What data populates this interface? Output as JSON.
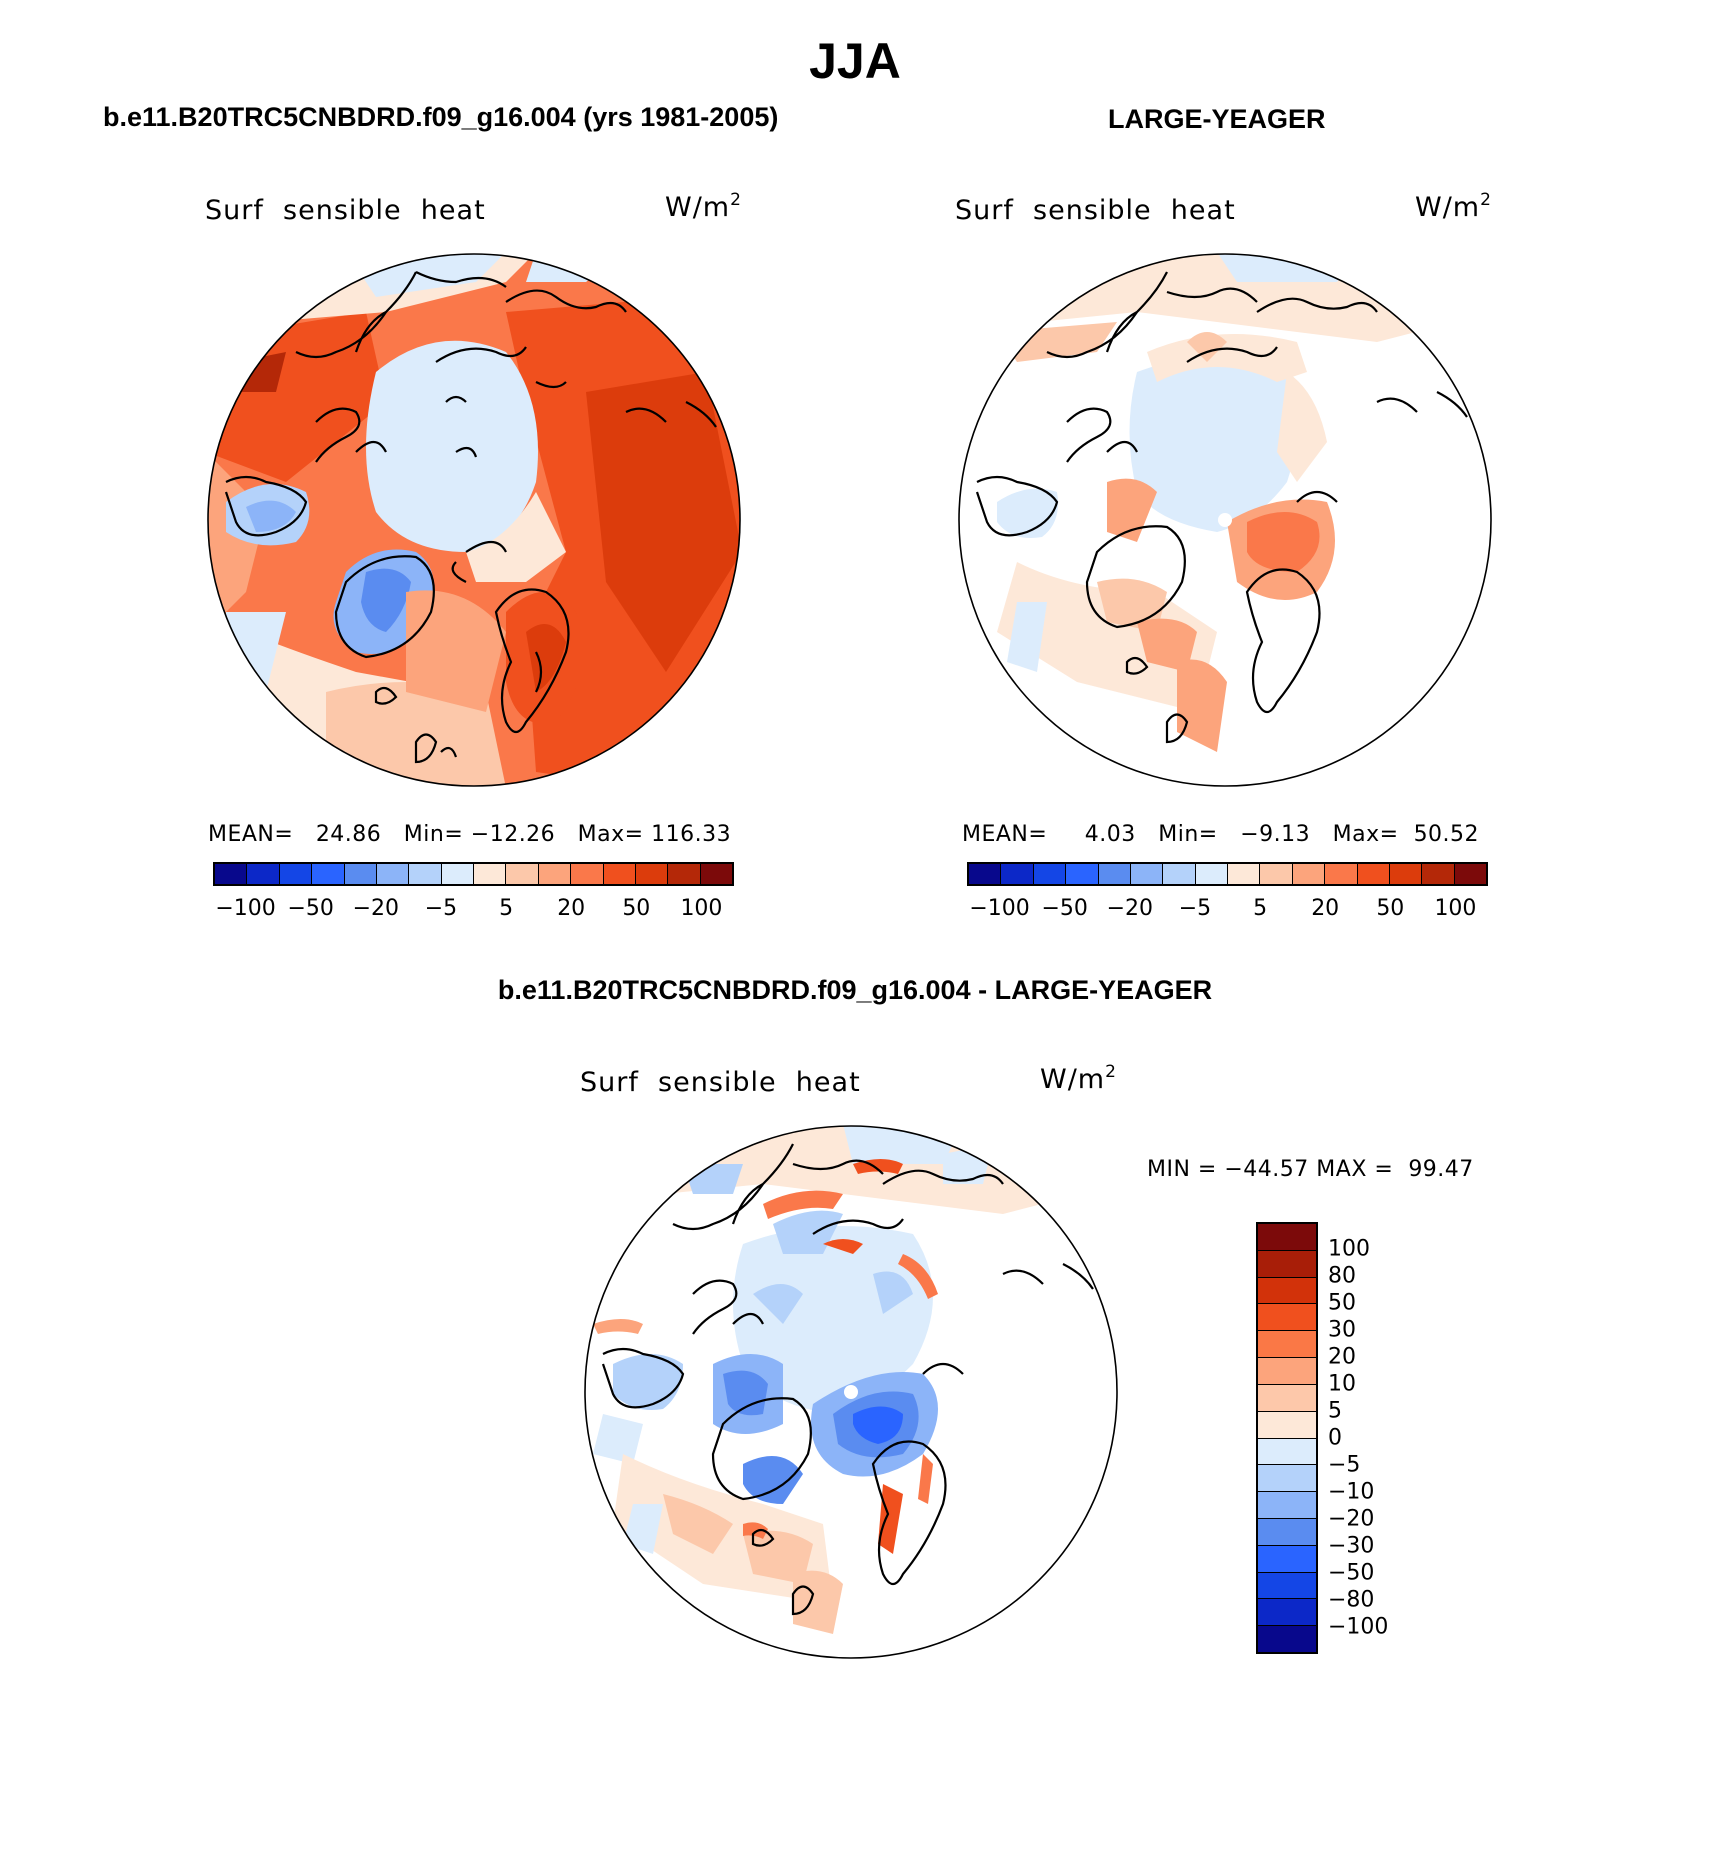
{
  "figure": {
    "season": "JJA",
    "left_case_title": "b.e11.B20TRC5CNBDRD.f09_g16.004 (yrs 1981-2005)",
    "right_case_title": "LARGE-YEAGER",
    "diff_title": "b.e11.B20TRC5CNBDRD.f09_g16.004 - LARGE-YEAGER"
  },
  "panels": {
    "model": {
      "field": "Surf  sensible  heat",
      "units": "W/m",
      "units_exp": "2",
      "mean_label": "MEAN=",
      "mean_value": "24.86",
      "min_label": "Min=",
      "min_value": "−12.26",
      "max_label": "Max=",
      "max_value": "116.33"
    },
    "obs": {
      "field": "Surf  sensible  heat",
      "units": "W/m",
      "units_exp": "2",
      "mean_label": "MEAN=",
      "mean_value": "4.03",
      "min_label": "Min=",
      "min_value": "−9.13",
      "max_label": "Max=",
      "max_value": "50.52"
    },
    "diff": {
      "field": "Surf  sensible  heat",
      "units": "W/m",
      "units_exp": "2",
      "min_label": "MIN =",
      "min_value": "−44.57",
      "max_label": "MAX =",
      "max_value": "99.47"
    }
  },
  "chart_data": [
    {
      "type": "heatmap",
      "projection": "north polar stereographic",
      "title": "Surf sensible heat",
      "subtitle": "b.e11.B20TRC5CNBDRD.f09_g16.004 (yrs 1981-2005)",
      "units": "W/m2",
      "mean": 24.86,
      "min": -12.26,
      "max": 116.33,
      "colorbar_levels": [
        -100,
        -50,
        -20,
        -5,
        5,
        20,
        50,
        100
      ],
      "colorbar_tick_labels": [
        "−100",
        "−50",
        "−20",
        "−5",
        "5",
        "20",
        "50",
        "100"
      ]
    },
    {
      "type": "heatmap",
      "projection": "north polar stereographic",
      "title": "Surf sensible heat",
      "subtitle": "LARGE-YEAGER",
      "units": "W/m2",
      "mean": 4.03,
      "min": -9.13,
      "max": 50.52,
      "colorbar_levels": [
        -100,
        -50,
        -20,
        -5,
        5,
        20,
        50,
        100
      ],
      "colorbar_tick_labels": [
        "−100",
        "−50",
        "−20",
        "−5",
        "5",
        "20",
        "50",
        "100"
      ]
    },
    {
      "type": "heatmap",
      "projection": "north polar stereographic",
      "title": "Surf sensible heat",
      "subtitle": "b.e11.B20TRC5CNBDRD.f09_g16.004 - LARGE-YEAGER",
      "units": "W/m2",
      "min": -44.57,
      "max": 99.47,
      "colorbar_levels": [
        100,
        80,
        50,
        30,
        20,
        10,
        5,
        0,
        -5,
        -10,
        -20,
        -30,
        -50,
        -80,
        -100
      ],
      "colorbar_tick_labels": [
        "100",
        "80",
        "50",
        "30",
        "20",
        "10",
        "5",
        "0",
        "−5",
        "−10",
        "−20",
        "−30",
        "−50",
        "−80",
        "−100"
      ]
    }
  ],
  "colors": {
    "abs_scale": [
      "#08088c",
      "#0c28c8",
      "#1446e6",
      "#2a64ff",
      "#5a8cf0",
      "#8cb4f8",
      "#b4d2fa",
      "#dcecfc",
      "#fde8d8",
      "#fcc8aa",
      "#fca47c",
      "#fa784a",
      "#f0501e",
      "#dc3c0c",
      "#b42808",
      "#7c0a0a"
    ],
    "diff_scale": [
      "#7c0a0a",
      "#a81e08",
      "#d2320a",
      "#f0501e",
      "#fa7846",
      "#fca47c",
      "#fdc8aa",
      "#fde8d8",
      "#dcecfc",
      "#b4d2fa",
      "#8cb4f8",
      "#5a8cf0",
      "#2a64ff",
      "#1446e6",
      "#0c28c8",
      "#08088c"
    ]
  }
}
